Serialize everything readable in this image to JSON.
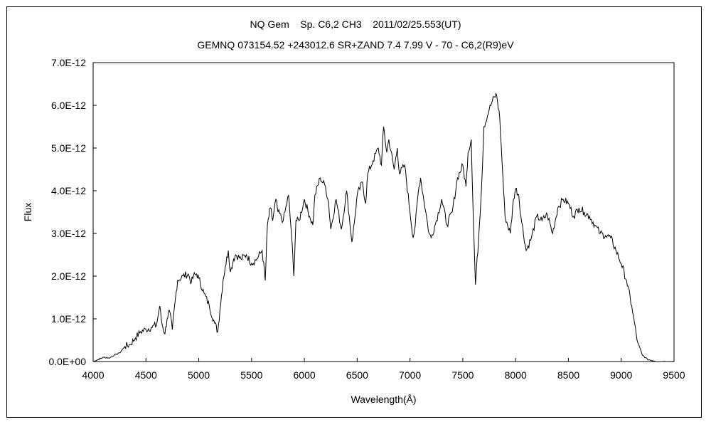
{
  "chart_data": {
    "type": "line",
    "title": "NQ Gem    Sp. C6,2 CH3    2011/02/25.553(UT)",
    "subtitle": "GEMNQ 073154.52 +243012.6 SR+ZAND 7.4 7.99 V - 70 - C6,2(R9)eV",
    "xlabel": "Wavelength(Å)",
    "ylabel": "Flux",
    "xlim": [
      4000,
      9500
    ],
    "ylim": [
      0,
      7e-12
    ],
    "grid": false,
    "legend": "none",
    "x_ticks": [
      "4000",
      "4500",
      "5000",
      "5500",
      "6000",
      "6500",
      "7000",
      "7500",
      "8000",
      "8500",
      "9000",
      "9500"
    ],
    "y_ticks": [
      "0.0E+00",
      "1.0E-12",
      "2.0E-12",
      "3.0E-12",
      "4.0E-12",
      "5.0E-12",
      "6.0E-12",
      "7.0E-12"
    ],
    "series": [
      {
        "color": "#000000",
        "x": [
          4000,
          4100,
          4150,
          4200,
          4250,
          4300,
          4350,
          4400,
          4450,
          4500,
          4550,
          4600,
          4630,
          4650,
          4680,
          4700,
          4720,
          4750,
          4780,
          4800,
          4850,
          4900,
          4930,
          4950,
          4980,
          5000,
          5050,
          5100,
          5150,
          5180,
          5200,
          5230,
          5250,
          5280,
          5300,
          5330,
          5350,
          5400,
          5450,
          5500,
          5550,
          5600,
          5630,
          5650,
          5680,
          5700,
          5730,
          5750,
          5800,
          5850,
          5880,
          5900,
          5920,
          5950,
          6000,
          6050,
          6080,
          6100,
          6150,
          6200,
          6230,
          6250,
          6300,
          6350,
          6400,
          6450,
          6480,
          6500,
          6550,
          6580,
          6600,
          6650,
          6700,
          6730,
          6750,
          6780,
          6800,
          6850,
          6880,
          6900,
          6950,
          7000,
          7030,
          7050,
          7080,
          7100,
          7150,
          7180,
          7200,
          7250,
          7300,
          7350,
          7400,
          7450,
          7500,
          7530,
          7550,
          7580,
          7600,
          7620,
          7650,
          7680,
          7700,
          7750,
          7780,
          7800,
          7820,
          7850,
          7880,
          7900,
          7950,
          7980,
          8000,
          8030,
          8050,
          8100,
          8150,
          8200,
          8250,
          8300,
          8350,
          8400,
          8450,
          8500,
          8550,
          8600,
          8650,
          8700,
          8750,
          8800,
          8850,
          8900,
          8950,
          9000,
          9050,
          9100,
          9150,
          9200,
          9250,
          9300,
          9350,
          9400,
          9450,
          9500
        ],
        "values": [
          0.0,
          1e-13,
          8e-14,
          1.5e-13,
          2e-13,
          3.5e-13,
          4e-13,
          5.5e-13,
          7e-13,
          7.5e-13,
          8e-13,
          8.5e-13,
          1.3e-12,
          9e-13,
          6.5e-13,
          1e-12,
          1.2e-12,
          7.5e-13,
          1.5e-12,
          1.9e-12,
          2e-12,
          2.05e-12,
          1.85e-12,
          2e-12,
          2.05e-12,
          1.95e-12,
          1.6e-12,
          1.3e-12,
          9e-13,
          7e-13,
          1.2e-12,
          1.9e-12,
          2.2e-12,
          2.6e-12,
          2.1e-12,
          2.4e-12,
          2.5e-12,
          2.4e-12,
          2.5e-12,
          2.3e-12,
          2.4e-12,
          2.6e-12,
          1.9e-12,
          3.2e-12,
          3.6e-12,
          3.3e-12,
          3.8e-12,
          3.5e-12,
          3.3e-12,
          3.9e-12,
          2.9e-12,
          2e-12,
          3.3e-12,
          3.3e-12,
          3.8e-12,
          3.4e-12,
          3.2e-12,
          3.9e-12,
          4.3e-12,
          4.1e-12,
          3.7e-12,
          3.1e-12,
          3.8e-12,
          3.1e-12,
          4e-12,
          2.8e-12,
          3.4e-12,
          3.9e-12,
          4.2e-12,
          3.7e-12,
          4.4e-12,
          4.7e-12,
          5e-12,
          4.6e-12,
          5.5e-12,
          4.9e-12,
          5.2e-12,
          4.5e-12,
          5e-12,
          4.4e-12,
          4.6e-12,
          3.5e-12,
          2.9e-12,
          3.2e-12,
          4e-12,
          4.3e-12,
          3.5e-12,
          3e-12,
          2.9e-12,
          3.3e-12,
          3.8e-12,
          3.2e-12,
          3.5e-12,
          4.3e-12,
          4.6e-12,
          4.1e-12,
          4.9e-12,
          5.2e-12,
          3.3e-12,
          1.8e-12,
          2.9e-12,
          4.2e-12,
          5.5e-12,
          5.9e-12,
          6.1e-12,
          6.2e-12,
          6.25e-12,
          5.7e-12,
          4.3e-12,
          3.4e-12,
          3e-12,
          3.8e-12,
          4.05e-12,
          3.9e-12,
          3.4e-12,
          2.6e-12,
          2.9e-12,
          3.4e-12,
          3.3e-12,
          3.45e-12,
          3e-12,
          3.6e-12,
          3.8e-12,
          3.7e-12,
          3.4e-12,
          3.6e-12,
          3.5e-12,
          3.4e-12,
          3.2e-12,
          3e-12,
          2.95e-12,
          2.9e-12,
          2.6e-12,
          2.3e-12,
          1.9e-12,
          1.3e-12,
          5e-13,
          1.5e-13,
          5e-14,
          2e-14,
          0.0,
          0.0,
          0.0,
          0.0
        ]
      }
    ]
  }
}
